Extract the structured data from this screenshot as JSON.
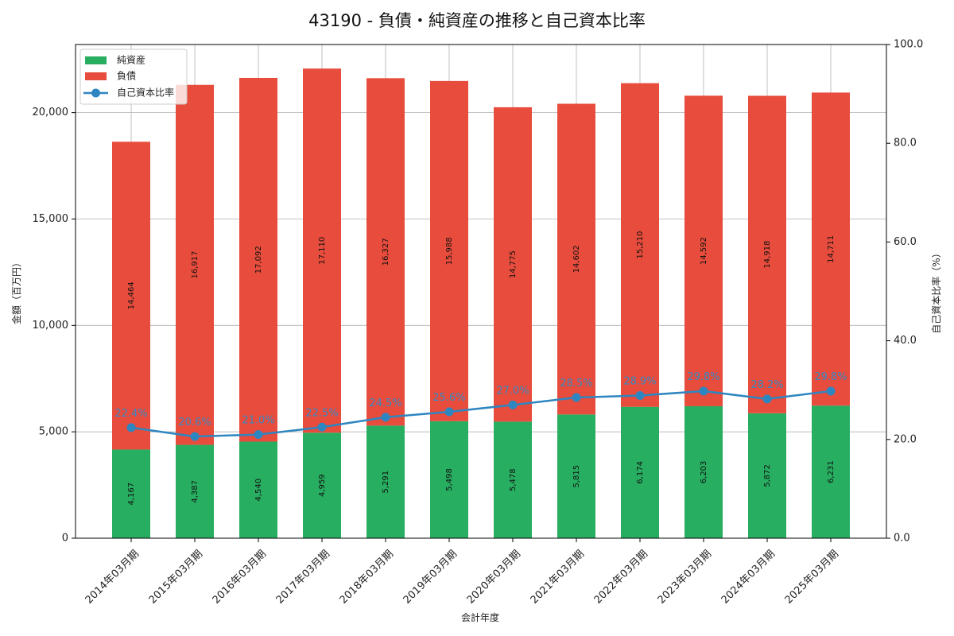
{
  "chart_data": {
    "type": "bar",
    "stacked": true,
    "title": "43190 - 負債・純資産の推移と自己資本比率",
    "xlabel": "会計年度",
    "ylabel": "金額（百万円）",
    "ylabel_right": "自己資本比率（%）",
    "ylim": [
      0,
      23200
    ],
    "ylim_right": [
      0,
      100
    ],
    "yticks": [
      "0",
      "5,000",
      "10,000",
      "15,000",
      "20,000"
    ],
    "yticks_right": [
      "0.0",
      "20.0",
      "40.0",
      "60.0",
      "80.0",
      "100.0"
    ],
    "grid": true,
    "legend_position": "upper left",
    "categories": [
      "2014年03月期",
      "2015年03月期",
      "2016年03月期",
      "2017年03月期",
      "2018年03月期",
      "2019年03月期",
      "2020年03月期",
      "2021年03月期",
      "2022年03月期",
      "2023年03月期",
      "2024年03月期",
      "2025年03月期"
    ],
    "series": [
      {
        "name": "純資産",
        "type": "bar",
        "color": "#27ae60",
        "values": [
          4167,
          4387,
          4540,
          4959,
          5291,
          5498,
          5478,
          5815,
          6174,
          6203,
          5872,
          6231
        ],
        "labels": [
          "4,167",
          "4,387",
          "4,540",
          "4,959",
          "5,291",
          "5,498",
          "5,478",
          "5,815",
          "6,174",
          "6,203",
          "5,872",
          "6,231"
        ]
      },
      {
        "name": "負債",
        "type": "bar",
        "color": "#e74c3c",
        "values": [
          14464,
          16917,
          17092,
          17110,
          16327,
          15988,
          14775,
          14602,
          15210,
          14592,
          14918,
          14711
        ],
        "labels": [
          "14,464",
          "16,917",
          "17,092",
          "17,110",
          "16,327",
          "15,988",
          "14,775",
          "14,602",
          "15,210",
          "14,592",
          "14,918",
          "14,711"
        ]
      },
      {
        "name": "自己資本比率",
        "type": "line",
        "axis": "right",
        "color": "#2e86c1",
        "values": [
          22.4,
          20.6,
          21.0,
          22.5,
          24.5,
          25.6,
          27.0,
          28.5,
          28.9,
          29.8,
          28.2,
          29.8
        ],
        "labels": [
          "22.4%",
          "20.6%",
          "21.0%",
          "22.5%",
          "24.5%",
          "25.6%",
          "27.0%",
          "28.5%",
          "28.9%",
          "29.8%",
          "28.2%",
          "29.8%"
        ]
      }
    ]
  }
}
